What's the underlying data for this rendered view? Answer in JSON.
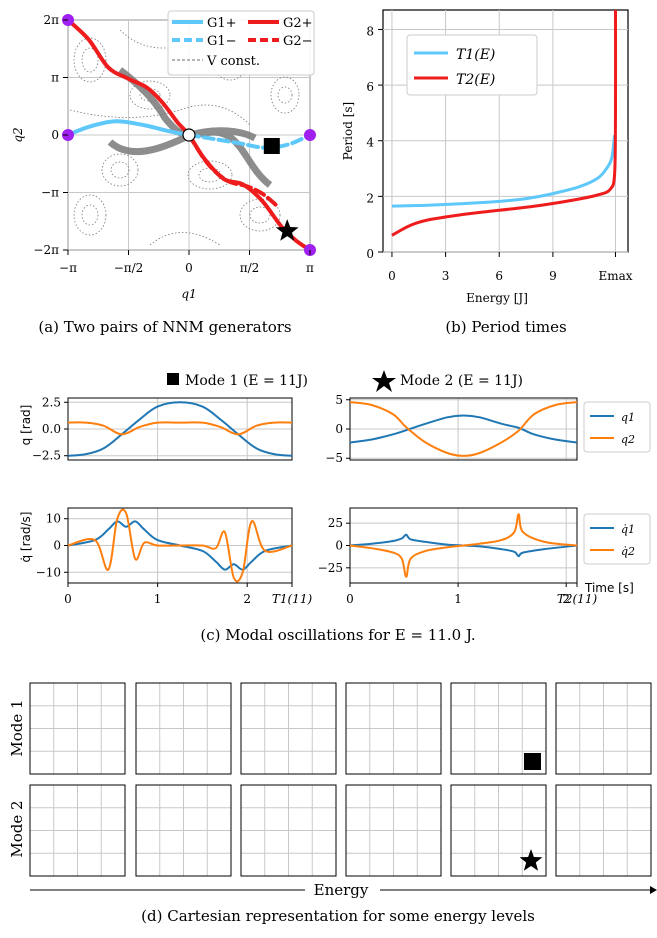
{
  "colors": {
    "blue": "#5ec8fb",
    "red": "#ee1c1c",
    "gray": "#808080",
    "violet": "#a020f0",
    "mblue": "#1f77b4",
    "orange": "#ff7f0e",
    "black": "#000000"
  },
  "panel_a": {
    "caption": "(a) Two pairs of NNM generators",
    "xlabel": "q1",
    "ylabel": "q2",
    "xticks": [
      "−π",
      "−π/2",
      "0",
      "π/2",
      "π"
    ],
    "yticks": [
      "2π",
      "π",
      "0",
      "−π",
      "−2π"
    ],
    "legend": [
      "G1+",
      "G1−",
      "G2+",
      "G2−",
      "V const."
    ]
  },
  "panel_b": {
    "caption": "(b) Period times",
    "xlabel": "Energy [J]",
    "ylabel": "Period [s]",
    "xticks": [
      "0",
      "3",
      "6",
      "9",
      "Emax"
    ],
    "yticks": [
      "8",
      "6",
      "4",
      "2",
      "0"
    ],
    "legend": [
      "T1(E)",
      "T2(E)"
    ]
  },
  "panel_c": {
    "caption": "(c) Modal oscillations for E = 11.0 J.",
    "title_left": "Mode 1 (E = 11J)",
    "title_right": "Mode 2 (E = 11J)",
    "ylabel_top": "q [rad]",
    "ylabel_bottom": "q̇ [rad/s]",
    "left_top_yticks": [
      "2.5",
      "0.0",
      "−2.5"
    ],
    "left_bottom_yticks": [
      "10",
      "0",
      "−10"
    ],
    "right_top_yticks": [
      "5",
      "0",
      "−5"
    ],
    "right_bottom_yticks": [
      "25",
      "0",
      "−25"
    ],
    "left_xticks": [
      "0",
      "1",
      "2",
      "T1(11)"
    ],
    "right_xticks": [
      "0",
      "1",
      "2",
      "T2(11)"
    ],
    "time_label": "Time [s]",
    "legend_top": [
      "q1",
      "q2"
    ],
    "legend_bottom": [
      "q̇1",
      "q̇2"
    ]
  },
  "panel_d": {
    "caption": "(d) Cartesian representation for some energy levels",
    "row_labels": [
      "Mode 1",
      "Mode 2"
    ],
    "energy_label": "Energy"
  },
  "chart_data": [
    {
      "type": "line",
      "title": "",
      "xlabel": "q1",
      "ylabel": "q2",
      "xlim": [
        -3.1416,
        3.1416
      ],
      "ylim": [
        -6.2832,
        6.2832
      ],
      "series": [
        {
          "name": "G1+",
          "x": [
            -3.1416,
            -2.6,
            -1.9,
            -1.2,
            -0.5,
            0.0
          ],
          "y": [
            0.0,
            0.45,
            0.75,
            0.55,
            0.2,
            0.0
          ]
        },
        {
          "name": "G1−",
          "x": [
            0.0,
            0.6,
            1.3,
            2.0,
            2.6,
            3.1416
          ],
          "y": [
            0.0,
            -0.2,
            -0.45,
            -0.7,
            -0.5,
            0.0
          ]
        },
        {
          "name": "G2+",
          "x": [
            -3.1416,
            -2.6,
            -2.1,
            -1.6,
            -1.1,
            -0.7,
            -0.3,
            0.0,
            0.4,
            0.9,
            1.4,
            1.9,
            2.4,
            2.8,
            3.1416
          ],
          "y": [
            6.2832,
            5.2,
            3.7,
            3.1,
            2.6,
            1.8,
            0.7,
            0.0,
            -1.3,
            -2.4,
            -2.7,
            -3.6,
            -5.0,
            -5.8,
            -6.2832
          ]
        },
        {
          "name": "G2−",
          "x": [
            0.0,
            0.5,
            1.0,
            1.5,
            1.9,
            2.3
          ],
          "y": [
            0.0,
            -1.6,
            -2.5,
            -2.8,
            -3.2,
            -3.9
          ]
        }
      ],
      "markers": [
        {
          "symbol": "square",
          "x": 2.15,
          "y": -0.6
        },
        {
          "symbol": "star",
          "x": 2.55,
          "y": -5.25
        },
        {
          "symbol": "open-circle",
          "x": 0.0,
          "y": 0.0
        }
      ]
    },
    {
      "type": "line",
      "title": "",
      "xlabel": "Energy [J]",
      "ylabel": "Period [s]",
      "xlim": [
        -0.5,
        13.2
      ],
      "ylim": [
        0,
        8.7
      ],
      "series": [
        {
          "name": "T1(E)",
          "x": [
            0,
            2,
            4,
            6,
            7.5,
            9,
            10.5,
            11.5,
            12.0,
            12.3,
            12.45
          ],
          "y": [
            1.65,
            1.68,
            1.74,
            1.82,
            1.92,
            2.1,
            2.35,
            2.65,
            3.0,
            3.4,
            4.2
          ]
        },
        {
          "name": "T2(E)",
          "x": [
            0,
            1,
            2,
            4,
            6,
            8,
            10,
            11.5,
            12.2,
            12.45,
            12.5,
            12.5
          ],
          "y": [
            0.6,
            0.95,
            1.15,
            1.35,
            1.5,
            1.65,
            1.85,
            2.05,
            2.25,
            2.8,
            5,
            8.7
          ]
        }
      ]
    },
    {
      "type": "line",
      "title": "Mode 1 (E = 11J)",
      "xlabel": "",
      "ylabel": "q [rad]",
      "xlim": [
        0,
        2.5
      ],
      "ylim": [
        -2.9,
        2.9
      ],
      "x": [
        0,
        0.2,
        0.4,
        0.6,
        0.8,
        1.0,
        1.25,
        1.5,
        1.7,
        1.9,
        2.1,
        2.3,
        2.5
      ],
      "series": [
        {
          "name": "q1",
          "values": [
            -2.5,
            -2.35,
            -1.8,
            -0.5,
            0.9,
            2.1,
            2.5,
            2.1,
            0.9,
            -0.5,
            -1.8,
            -2.35,
            -2.5
          ]
        },
        {
          "name": "q2",
          "values": [
            0.6,
            0.6,
            0.3,
            -0.5,
            0.2,
            0.6,
            0.6,
            0.6,
            0.2,
            -0.5,
            0.3,
            0.6,
            0.6
          ]
        }
      ]
    },
    {
      "type": "line",
      "title": "",
      "xlabel": "",
      "ylabel": "q̇ [rad/s]",
      "xlim": [
        0,
        2.5
      ],
      "ylim": [
        -14,
        14
      ],
      "x": [
        0,
        0.3,
        0.45,
        0.55,
        0.65,
        0.75,
        0.85,
        1.0,
        1.25,
        1.5,
        1.65,
        1.75,
        1.85,
        1.95,
        2.05,
        2.2,
        2.5
      ],
      "series": [
        {
          "name": "q̇1",
          "values": [
            0,
            2,
            6,
            9,
            7,
            9,
            6,
            2,
            0,
            -2,
            -6,
            -9,
            -7,
            -9,
            -6,
            -2,
            0
          ]
        },
        {
          "name": "q̇2",
          "values": [
            0,
            2,
            -9,
            10,
            12,
            -5,
            1,
            0,
            0,
            0,
            -1,
            5,
            -12,
            -10,
            9,
            -2,
            0
          ]
        }
      ]
    },
    {
      "type": "line",
      "title": "Mode 2 (E = 11J)",
      "xlabel": "",
      "ylabel": "",
      "xlim": [
        0,
        2.1
      ],
      "ylim": [
        -5.3,
        5.3
      ],
      "x": [
        0,
        0.2,
        0.4,
        0.52,
        0.7,
        0.9,
        1.05,
        1.2,
        1.4,
        1.56,
        1.7,
        1.9,
        2.1
      ],
      "series": [
        {
          "name": "q1",
          "values": [
            -2.3,
            -1.8,
            -0.9,
            -0.2,
            0.9,
            2.0,
            2.3,
            2.0,
            0.9,
            0.2,
            -0.9,
            -1.8,
            -2.3
          ]
        },
        {
          "name": "q2",
          "values": [
            4.6,
            4.1,
            2.5,
            0.3,
            -2.3,
            -4.1,
            -4.6,
            -4.1,
            -2.3,
            -0.3,
            2.5,
            4.1,
            4.6
          ]
        }
      ]
    },
    {
      "type": "line",
      "title": "",
      "xlabel": "Time [s]",
      "ylabel": "",
      "xlim": [
        0,
        2.1
      ],
      "ylim": [
        -42,
        42
      ],
      "x": [
        0,
        0.2,
        0.4,
        0.48,
        0.52,
        0.56,
        0.7,
        0.9,
        1.05,
        1.2,
        1.4,
        1.52,
        1.56,
        1.6,
        1.8,
        2.1
      ],
      "series": [
        {
          "name": "q̇1",
          "values": [
            0,
            2,
            5,
            8,
            12,
            7,
            4,
            1,
            0,
            -1,
            -4,
            -7,
            -12,
            -8,
            -4,
            0
          ]
        },
        {
          "name": "q̇2",
          "values": [
            0,
            -3,
            -8,
            -15,
            -35,
            -15,
            -6,
            -2,
            0,
            2,
            6,
            15,
            35,
            15,
            4,
            0
          ]
        }
      ]
    }
  ]
}
